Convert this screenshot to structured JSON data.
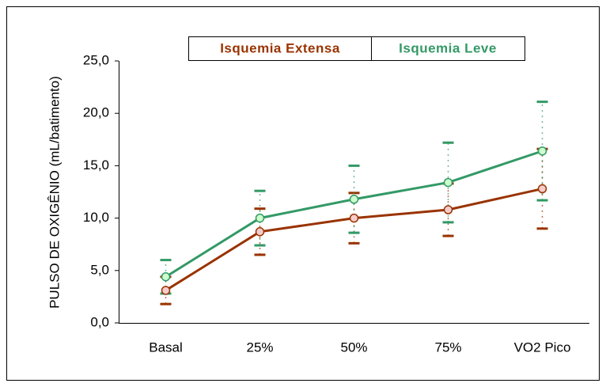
{
  "chart_data": {
    "type": "line",
    "ylabel": "PULSO DE OXIGÊNIO (mL/batimento)",
    "categories": [
      "Basal",
      "25%",
      "50%",
      "75%",
      "VO2 Pico"
    ],
    "series": [
      {
        "name": "Isquemia Extensa",
        "color": "#993300",
        "marker_color": "#f4cccc",
        "values": [
          3.1,
          8.7,
          10.0,
          10.8,
          12.8
        ],
        "errors": [
          1.3,
          2.2,
          2.4,
          2.5,
          3.8
        ]
      },
      {
        "name": "Isquemia Leve",
        "color": "#339966",
        "marker_color": "#ccffcc",
        "values": [
          4.4,
          10.0,
          11.8,
          13.4,
          16.4
        ],
        "errors": [
          1.6,
          2.6,
          3.2,
          3.8,
          4.7
        ]
      }
    ],
    "ylim": [
      0,
      25
    ],
    "yticks": [
      {
        "value": 0,
        "label": "0,0"
      },
      {
        "value": 5,
        "label": "5,0"
      },
      {
        "value": 10,
        "label": "10,0"
      },
      {
        "value": 15,
        "label": "15,0"
      },
      {
        "value": 20,
        "label": "20,0"
      },
      {
        "value": 25,
        "label": "25,0"
      }
    ]
  }
}
